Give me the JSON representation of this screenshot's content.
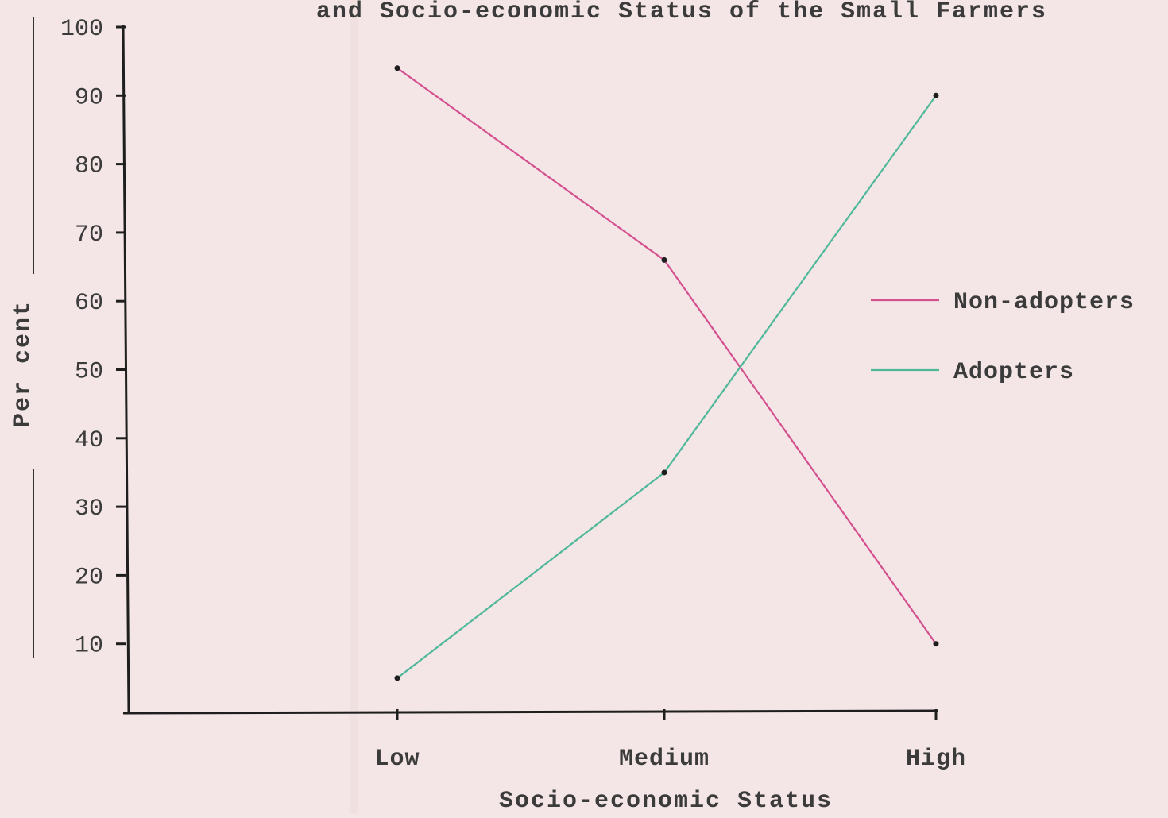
{
  "chart_data": {
    "type": "line",
    "title": "and Socio-economic Status of the Small Farmers",
    "xlabel": "Socio-economic Status",
    "ylabel": "Per cent",
    "categories": [
      "Low",
      "Medium",
      "High"
    ],
    "yticks": [
      10,
      20,
      30,
      40,
      50,
      60,
      70,
      80,
      90,
      100
    ],
    "ylim": [
      0,
      100
    ],
    "grid": false,
    "legend_position": "right",
    "series": [
      {
        "name": "Non-adopters",
        "color": "#d4508f",
        "values": [
          94,
          66,
          10
        ]
      },
      {
        "name": "Adopters",
        "color": "#4fb89a",
        "values": [
          5,
          35,
          90
        ]
      }
    ]
  }
}
